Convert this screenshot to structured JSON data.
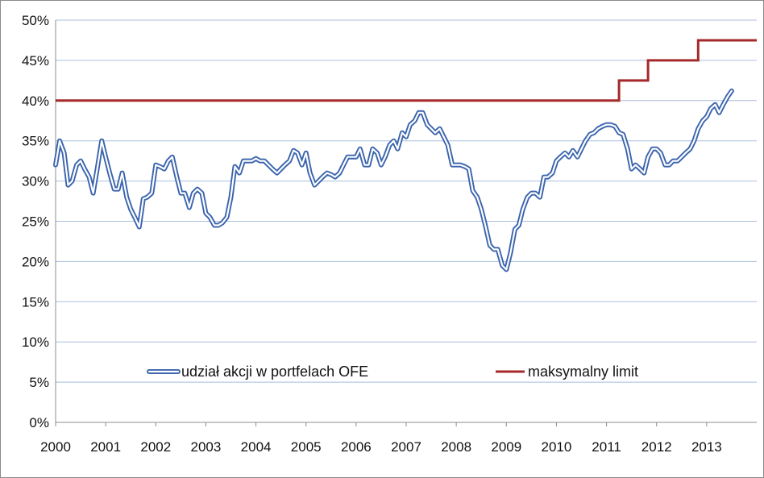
{
  "chart_data": {
    "type": "line",
    "title": "",
    "xlabel": "",
    "ylabel": "",
    "ylim": [
      0,
      50
    ],
    "xlim": [
      2000.0,
      2014.0
    ],
    "y_ticks": [
      "0%",
      "5%",
      "10%",
      "15%",
      "20%",
      "25%",
      "30%",
      "35%",
      "40%",
      "45%",
      "50%"
    ],
    "x_ticks": [
      "2000",
      "2001",
      "2002",
      "2003",
      "2004",
      "2005",
      "2006",
      "2007",
      "2008",
      "2009",
      "2010",
      "2011",
      "2012",
      "2013"
    ],
    "grid": "horizontal",
    "legend_position": "bottom-inside",
    "series": [
      {
        "name": "udział akcji w portfelach OFE",
        "color": "#3b64ad",
        "style": "double-outline",
        "points": [
          [
            2000.0,
            32.0
          ],
          [
            2000.08,
            35.0
          ],
          [
            2000.17,
            33.5
          ],
          [
            2000.25,
            29.5
          ],
          [
            2000.33,
            30.0
          ],
          [
            2000.42,
            32.0
          ],
          [
            2000.5,
            32.5
          ],
          [
            2000.58,
            31.5
          ],
          [
            2000.67,
            30.5
          ],
          [
            2000.75,
            28.5
          ],
          [
            2000.83,
            31.5
          ],
          [
            2000.92,
            35.0
          ],
          [
            2001.0,
            33.0
          ],
          [
            2001.08,
            31.0
          ],
          [
            2001.17,
            29.0
          ],
          [
            2001.25,
            29.0
          ],
          [
            2001.33,
            31.0
          ],
          [
            2001.42,
            28.0
          ],
          [
            2001.5,
            26.5
          ],
          [
            2001.58,
            25.5
          ],
          [
            2001.67,
            24.3
          ],
          [
            2001.75,
            27.8
          ],
          [
            2001.83,
            28.0
          ],
          [
            2001.92,
            28.5
          ],
          [
            2002.0,
            32.0
          ],
          [
            2002.08,
            31.8
          ],
          [
            2002.17,
            31.5
          ],
          [
            2002.25,
            32.5
          ],
          [
            2002.33,
            33.0
          ],
          [
            2002.42,
            30.5
          ],
          [
            2002.5,
            28.5
          ],
          [
            2002.58,
            28.5
          ],
          [
            2002.67,
            26.7
          ],
          [
            2002.75,
            28.5
          ],
          [
            2002.83,
            29.0
          ],
          [
            2002.92,
            28.5
          ],
          [
            2003.0,
            26.0
          ],
          [
            2003.08,
            25.5
          ],
          [
            2003.17,
            24.5
          ],
          [
            2003.25,
            24.5
          ],
          [
            2003.33,
            24.8
          ],
          [
            2003.42,
            25.5
          ],
          [
            2003.5,
            28.0
          ],
          [
            2003.58,
            31.8
          ],
          [
            2003.67,
            31.0
          ],
          [
            2003.75,
            32.5
          ],
          [
            2003.83,
            32.5
          ],
          [
            2003.92,
            32.5
          ],
          [
            2004.0,
            32.8
          ],
          [
            2004.08,
            32.5
          ],
          [
            2004.17,
            32.5
          ],
          [
            2004.25,
            32.0
          ],
          [
            2004.33,
            31.5
          ],
          [
            2004.42,
            31.0
          ],
          [
            2004.5,
            31.5
          ],
          [
            2004.58,
            32.0
          ],
          [
            2004.67,
            32.5
          ],
          [
            2004.75,
            33.8
          ],
          [
            2004.83,
            33.5
          ],
          [
            2004.92,
            32.0
          ],
          [
            2005.0,
            33.5
          ],
          [
            2005.08,
            31.0
          ],
          [
            2005.17,
            29.5
          ],
          [
            2005.25,
            30.0
          ],
          [
            2005.33,
            30.5
          ],
          [
            2005.42,
            31.0
          ],
          [
            2005.5,
            30.8
          ],
          [
            2005.58,
            30.5
          ],
          [
            2005.67,
            31.0
          ],
          [
            2005.75,
            32.0
          ],
          [
            2005.83,
            33.0
          ],
          [
            2005.92,
            33.0
          ],
          [
            2006.0,
            33.0
          ],
          [
            2006.08,
            34.0
          ],
          [
            2006.17,
            32.0
          ],
          [
            2006.25,
            32.0
          ],
          [
            2006.33,
            34.0
          ],
          [
            2006.42,
            33.5
          ],
          [
            2006.5,
            32.0
          ],
          [
            2006.58,
            33.0
          ],
          [
            2006.67,
            34.5
          ],
          [
            2006.75,
            35.0
          ],
          [
            2006.83,
            34.0
          ],
          [
            2006.92,
            36.0
          ],
          [
            2007.0,
            35.5
          ],
          [
            2007.08,
            37.0
          ],
          [
            2007.17,
            37.5
          ],
          [
            2007.25,
            38.5
          ],
          [
            2007.33,
            38.5
          ],
          [
            2007.42,
            37.0
          ],
          [
            2007.5,
            36.5
          ],
          [
            2007.58,
            36.0
          ],
          [
            2007.67,
            36.5
          ],
          [
            2007.75,
            35.5
          ],
          [
            2007.83,
            34.5
          ],
          [
            2007.92,
            32.0
          ],
          [
            2008.0,
            32.0
          ],
          [
            2008.08,
            32.0
          ],
          [
            2008.17,
            31.8
          ],
          [
            2008.25,
            31.5
          ],
          [
            2008.33,
            28.8
          ],
          [
            2008.42,
            28.0
          ],
          [
            2008.5,
            26.5
          ],
          [
            2008.58,
            24.5
          ],
          [
            2008.67,
            22.0
          ],
          [
            2008.75,
            21.5
          ],
          [
            2008.83,
            21.5
          ],
          [
            2008.92,
            19.5
          ],
          [
            2009.0,
            19.0
          ],
          [
            2009.08,
            21.0
          ],
          [
            2009.17,
            24.0
          ],
          [
            2009.25,
            24.5
          ],
          [
            2009.33,
            26.5
          ],
          [
            2009.42,
            28.0
          ],
          [
            2009.5,
            28.5
          ],
          [
            2009.58,
            28.5
          ],
          [
            2009.67,
            28.0
          ],
          [
            2009.75,
            30.5
          ],
          [
            2009.83,
            30.5
          ],
          [
            2009.92,
            31.0
          ],
          [
            2010.0,
            32.5
          ],
          [
            2010.08,
            33.0
          ],
          [
            2010.17,
            33.5
          ],
          [
            2010.25,
            33.0
          ],
          [
            2010.33,
            33.8
          ],
          [
            2010.42,
            33.0
          ],
          [
            2010.5,
            34.0
          ],
          [
            2010.58,
            35.0
          ],
          [
            2010.67,
            35.8
          ],
          [
            2010.75,
            36.0
          ],
          [
            2010.83,
            36.5
          ],
          [
            2010.92,
            36.8
          ],
          [
            2011.0,
            37.0
          ],
          [
            2011.08,
            37.0
          ],
          [
            2011.17,
            36.8
          ],
          [
            2011.25,
            36.0
          ],
          [
            2011.33,
            35.8
          ],
          [
            2011.42,
            34.0
          ],
          [
            2011.5,
            31.5
          ],
          [
            2011.58,
            32.0
          ],
          [
            2011.67,
            31.5
          ],
          [
            2011.75,
            31.0
          ],
          [
            2011.83,
            33.0
          ],
          [
            2011.92,
            34.0
          ],
          [
            2012.0,
            34.0
          ],
          [
            2012.08,
            33.5
          ],
          [
            2012.17,
            32.0
          ],
          [
            2012.25,
            32.0
          ],
          [
            2012.33,
            32.5
          ],
          [
            2012.42,
            32.5
          ],
          [
            2012.5,
            33.0
          ],
          [
            2012.58,
            33.5
          ],
          [
            2012.67,
            34.0
          ],
          [
            2012.75,
            35.0
          ],
          [
            2012.83,
            36.5
          ],
          [
            2012.92,
            37.5
          ],
          [
            2013.0,
            38.0
          ],
          [
            2013.08,
            39.0
          ],
          [
            2013.17,
            39.5
          ],
          [
            2013.25,
            38.5
          ],
          [
            2013.33,
            39.5
          ],
          [
            2013.42,
            40.5
          ],
          [
            2013.5,
            41.2
          ]
        ]
      },
      {
        "name": "maksymalny limit",
        "color": "#a5292a",
        "style": "step",
        "points": [
          [
            2000.0,
            40.0
          ],
          [
            2011.25,
            40.0
          ],
          [
            2011.25,
            42.5
          ],
          [
            2011.83,
            42.5
          ],
          [
            2011.83,
            45.0
          ],
          [
            2012.83,
            45.0
          ],
          [
            2012.83,
            47.5
          ],
          [
            2014.0,
            47.5
          ]
        ]
      }
    ]
  }
}
